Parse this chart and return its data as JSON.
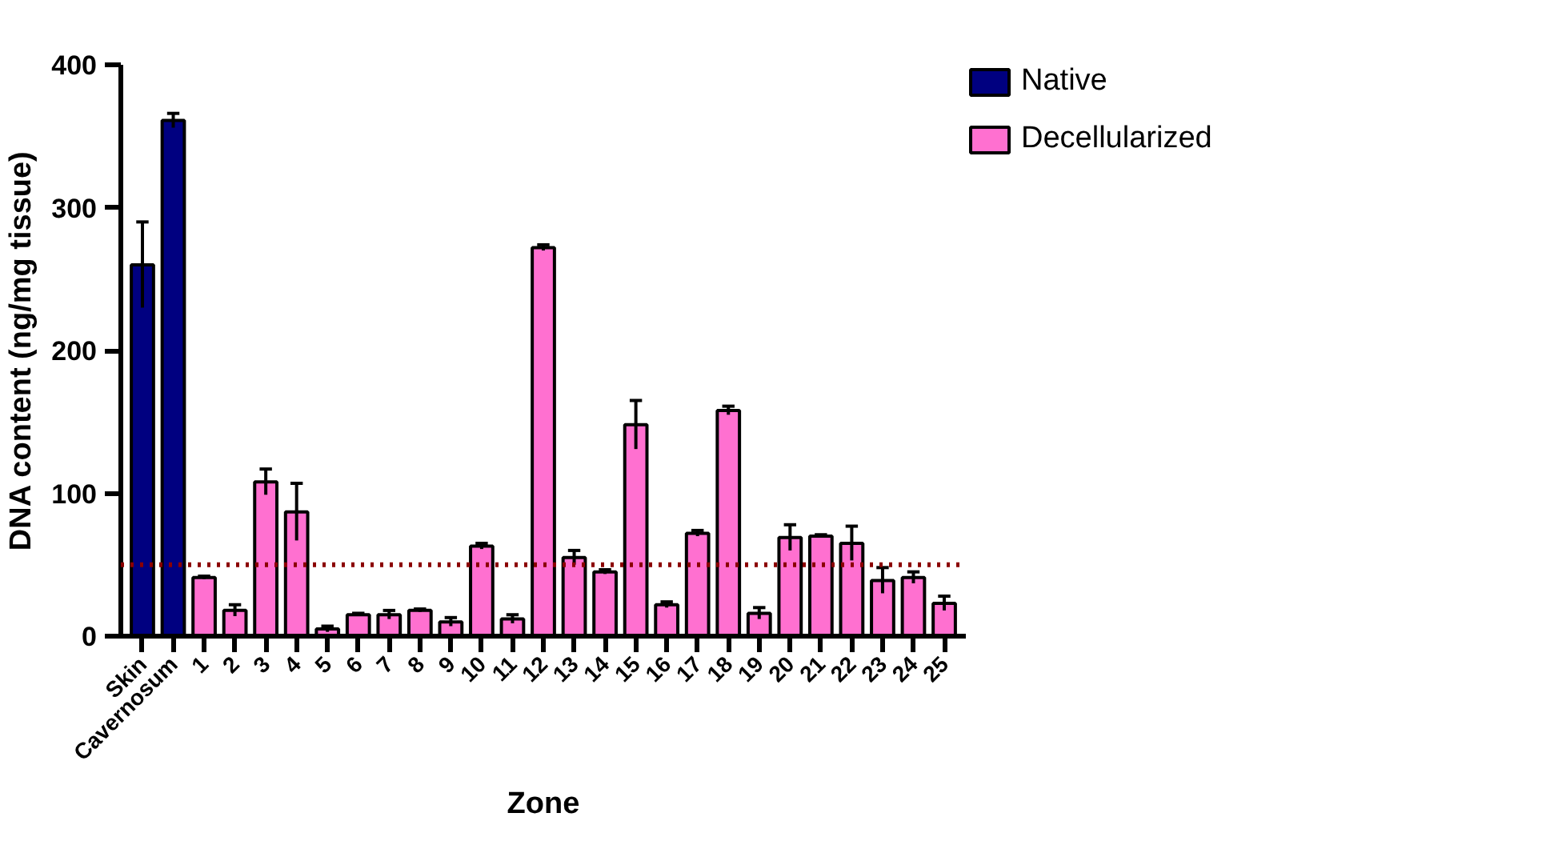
{
  "chart_data": {
    "type": "bar",
    "xlabel": "Zone",
    "ylabel": "DNA content (ng/mg tissue)",
    "categories": [
      "Skin",
      "Cavernosum",
      "1",
      "2",
      "3",
      "4",
      "5",
      "6",
      "7",
      "8",
      "9",
      "10",
      "11",
      "12",
      "13",
      "14",
      "15",
      "16",
      "17",
      "18",
      "19",
      "20",
      "21",
      "22",
      "23",
      "24",
      "25"
    ],
    "series": [
      {
        "name": "Native",
        "color": "#000080",
        "values": [
          260,
          361,
          null,
          null,
          null,
          null,
          null,
          null,
          null,
          null,
          null,
          null,
          null,
          null,
          null,
          null,
          null,
          null,
          null,
          null,
          null,
          null,
          null,
          null,
          null,
          null,
          null
        ],
        "errors": [
          30,
          5,
          null,
          null,
          null,
          null,
          null,
          null,
          null,
          null,
          null,
          null,
          null,
          null,
          null,
          null,
          null,
          null,
          null,
          null,
          null,
          null,
          null,
          null,
          null,
          null,
          null
        ]
      },
      {
        "name": "Decellularized",
        "color": "#ff70d0",
        "values": [
          null,
          null,
          41,
          18,
          108,
          87,
          5,
          15,
          15,
          18,
          10,
          63,
          12,
          272,
          55,
          45,
          148,
          22,
          72,
          158,
          16,
          69,
          70,
          65,
          39,
          41,
          23
        ],
        "errors": [
          null,
          null,
          1,
          4,
          9,
          20,
          2,
          1,
          3,
          1,
          3,
          2,
          3,
          2,
          5,
          1.5,
          17,
          2,
          2,
          3,
          4,
          9,
          1,
          12,
          9,
          4,
          5
        ]
      }
    ],
    "ylim": [
      0,
      400
    ],
    "yticks": [
      0,
      100,
      200,
      300,
      400
    ],
    "ref_lines": [
      {
        "axis": "y",
        "value": 50,
        "color": "#8b0000",
        "line_style": "dotted"
      }
    ],
    "grid": false,
    "legend": "top right"
  }
}
